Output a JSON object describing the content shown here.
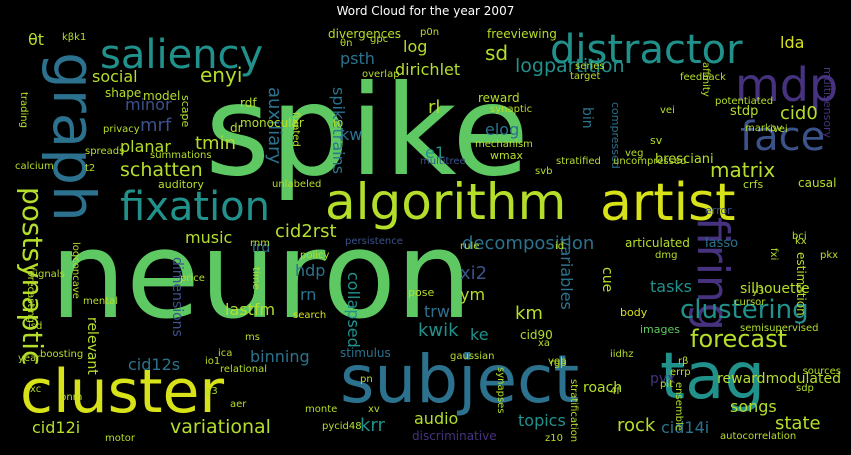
{
  "title": "Word Cloud for the year 2007",
  "palette": {
    "green": "#5ec962",
    "lime": "#b5de2b",
    "yellow": "#d8e219",
    "teal": "#21918c",
    "blue": "#2c728e",
    "indigo": "#3b528b",
    "purple": "#46327e",
    "dark": "#440154",
    "cyan": "#1fa187",
    "mint": "#4ac16d"
  },
  "words": [
    {
      "text": "spike"
    },
    {
      "text": "neuron"
    },
    {
      "text": "cluster"
    },
    {
      "text": "subject"
    },
    {
      "text": "tag"
    },
    {
      "text": "graph"
    },
    {
      "text": "saliency"
    },
    {
      "text": "distractor"
    },
    {
      "text": "mdp"
    },
    {
      "text": "artist"
    },
    {
      "text": "algorithm"
    },
    {
      "text": "fixation"
    },
    {
      "text": "face"
    },
    {
      "text": "firing"
    },
    {
      "text": "clustering"
    },
    {
      "text": "forecast"
    },
    {
      "text": "postsynaptic"
    },
    {
      "text": "matrix"
    },
    {
      "text": "decomposition"
    },
    {
      "text": "cid2rst"
    },
    {
      "text": "schatten"
    },
    {
      "text": "variational"
    },
    {
      "text": "social"
    },
    {
      "text": "enyi"
    },
    {
      "text": "log"
    },
    {
      "text": "sd"
    },
    {
      "text": "logpartition"
    },
    {
      "text": "dirichlet"
    },
    {
      "text": "psth"
    },
    {
      "text": "lda"
    },
    {
      "text": "cid0"
    },
    {
      "text": "minor"
    },
    {
      "text": "mrf"
    },
    {
      "text": "planar"
    },
    {
      "text": "tmin"
    },
    {
      "text": "auxiliary"
    },
    {
      "text": "spiketrains"
    },
    {
      "text": "kw"
    },
    {
      "text": "rl"
    },
    {
      "text": "elog"
    },
    {
      "text": "e1"
    },
    {
      "text": "bin"
    },
    {
      "text": "music"
    },
    {
      "text": "ird"
    },
    {
      "text": "hdp"
    },
    {
      "text": "rn"
    },
    {
      "text": "lastfm"
    },
    {
      "text": "dimensions"
    },
    {
      "text": "collapsed"
    },
    {
      "text": "xi2"
    },
    {
      "text": "ym"
    },
    {
      "text": "variables"
    },
    {
      "text": "cue"
    },
    {
      "text": "tasks"
    },
    {
      "text": "silhouette"
    },
    {
      "text": "km"
    },
    {
      "text": "kwik"
    },
    {
      "text": "ke"
    },
    {
      "text": "trw"
    },
    {
      "text": "cid90"
    },
    {
      "text": "relevant"
    },
    {
      "text": "cid12s"
    },
    {
      "text": "binning"
    },
    {
      "text": "audio"
    },
    {
      "text": "topics"
    },
    {
      "text": "rock"
    },
    {
      "text": "krr"
    },
    {
      "text": "songs"
    },
    {
      "text": "state"
    },
    {
      "text": "cid14i"
    },
    {
      "text": "cid12i"
    },
    {
      "text": "pvx"
    },
    {
      "text": "roach"
    },
    {
      "text": "rewardmodulated"
    },
    {
      "text": "images"
    },
    {
      "text": "body"
    },
    {
      "text": "pose"
    },
    {
      "text": "stimulus"
    },
    {
      "text": "discriminative"
    },
    {
      "text": "divergences"
    },
    {
      "text": "freeviewing"
    },
    {
      "text": "monocular"
    },
    {
      "text": "reward"
    },
    {
      "text": "synaptic"
    },
    {
      "text": "mechanism"
    },
    {
      "text": "wmax"
    },
    {
      "text": "compressed"
    },
    {
      "text": "bresciani"
    },
    {
      "text": "causal"
    },
    {
      "text": "multisensory"
    },
    {
      "text": "potentiated"
    },
    {
      "text": "stdp"
    },
    {
      "text": "markov"
    },
    {
      "text": "ivei"
    },
    {
      "text": "sv"
    },
    {
      "text": "model"
    },
    {
      "text": "shape"
    },
    {
      "text": "scape"
    },
    {
      "text": "privacy"
    },
    {
      "text": "summations"
    },
    {
      "text": "auditory"
    },
    {
      "text": "rdf"
    },
    {
      "text": "dr"
    },
    {
      "text": "fixated"
    },
    {
      "text": "t0"
    },
    {
      "text": "multitree"
    },
    {
      "text": "stratified"
    },
    {
      "text": "uncompressed"
    },
    {
      "text": "crfs"
    },
    {
      "text": "error"
    },
    {
      "text": "estimation"
    },
    {
      "text": "lasso"
    },
    {
      "text": "kx"
    },
    {
      "text": "articulated"
    },
    {
      "text": "rule"
    },
    {
      "text": "persistence"
    },
    {
      "text": "id"
    },
    {
      "text": "policy"
    },
    {
      "text": "rnm"
    },
    {
      "text": "price"
    },
    {
      "text": "time"
    },
    {
      "text": "search"
    },
    {
      "text": "gaussian"
    },
    {
      "text": "ica"
    },
    {
      "text": "relational"
    },
    {
      "text": "monte"
    },
    {
      "text": "xv"
    },
    {
      "text": "pycid48"
    },
    {
      "text": "z10"
    },
    {
      "text": "autocorrelation"
    },
    {
      "text": "motor"
    },
    {
      "text": "ensemble"
    },
    {
      "text": "synapses"
    },
    {
      "text": "stratification"
    },
    {
      "text": "xa"
    },
    {
      "text": "veb"
    },
    {
      "text": "iidhz"
    },
    {
      "text": "semisupervised"
    },
    {
      "text": "cursor"
    },
    {
      "text": "y3"
    },
    {
      "text": "dmg"
    },
    {
      "text": "sdp"
    },
    {
      "text": "sources"
    },
    {
      "text": "signals"
    },
    {
      "text": "logconcave"
    },
    {
      "text": "forecasting"
    },
    {
      "text": "mental"
    },
    {
      "text": "boosting"
    },
    {
      "text": "isd"
    },
    {
      "text": "year"
    },
    {
      "text": "bnm"
    },
    {
      "text": "xc"
    },
    {
      "text": "trading"
    },
    {
      "text": "spreads"
    },
    {
      "text": "calcium"
    },
    {
      "text": "θt"
    },
    {
      "text": "kβk1"
    },
    {
      "text": "series"
    },
    {
      "text": "target"
    },
    {
      "text": "feedback"
    },
    {
      "text": "affinity"
    },
    {
      "text": "overlap"
    },
    {
      "text": "gpc"
    },
    {
      "text": "θn"
    },
    {
      "text": "p0n"
    },
    {
      "text": "svb"
    },
    {
      "text": "veg"
    },
    {
      "text": "vei"
    },
    {
      "text": "errp"
    },
    {
      "text": "rgp"
    },
    {
      "text": "rβ"
    },
    {
      "text": "bci"
    },
    {
      "text": "pkx"
    },
    {
      "text": "fxi"
    },
    {
      "text": "unlabeled"
    },
    {
      "text": "io1"
    },
    {
      "text": "ms"
    },
    {
      "text": "pn"
    },
    {
      "text": "aer"
    },
    {
      "text": "4f"
    },
    {
      "text": "pit"
    },
    {
      "text": "g3"
    },
    {
      "text": "t2"
    }
  ]
}
